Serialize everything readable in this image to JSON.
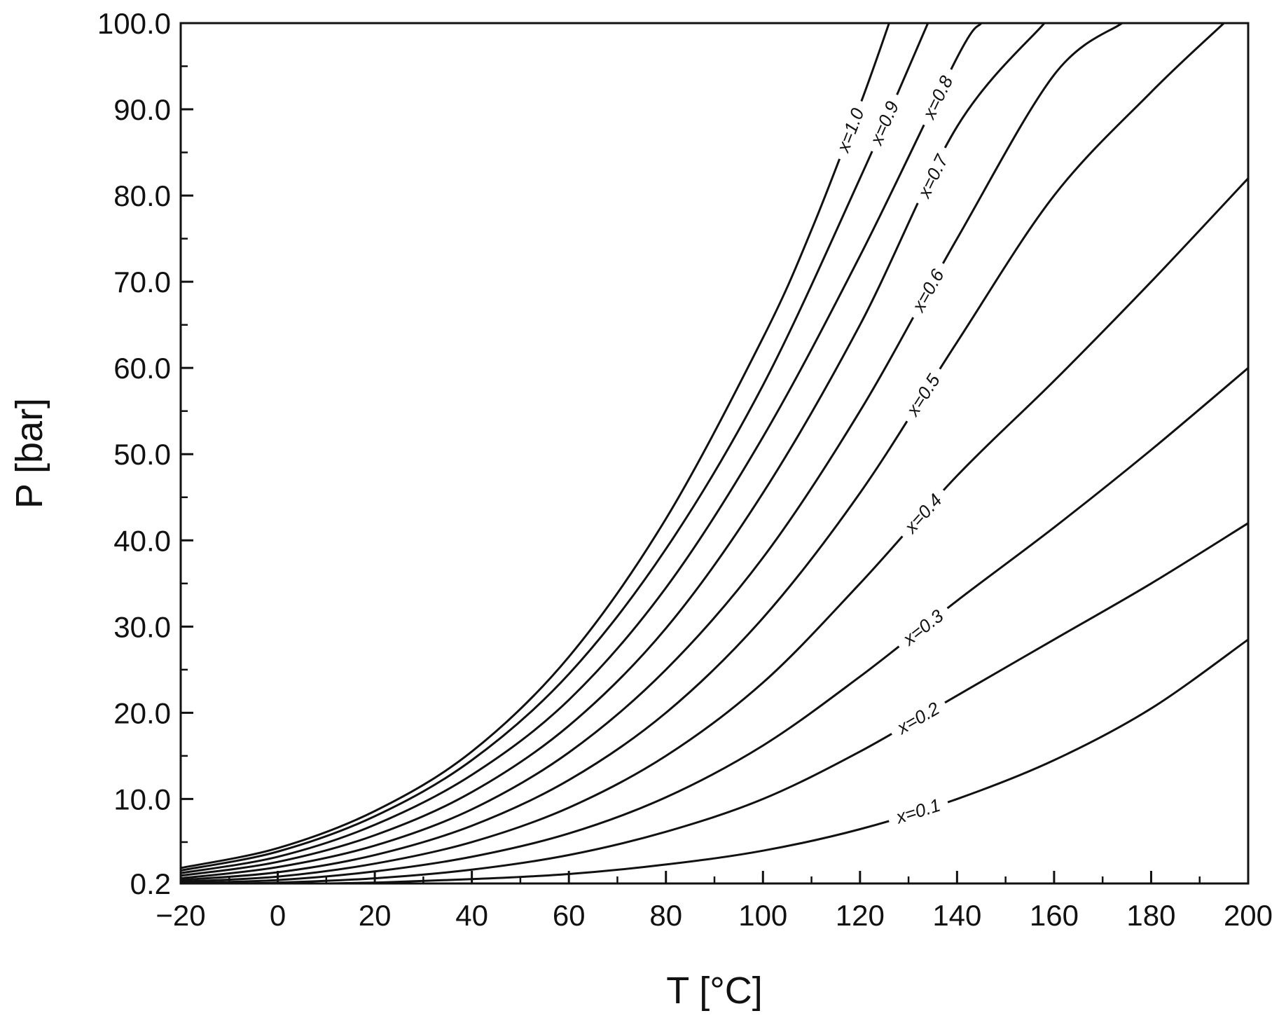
{
  "chart_data": {
    "type": "line",
    "xlabel": "T [°C]",
    "ylabel": "P [bar]",
    "xlim": [
      -20,
      200
    ],
    "ylim": [
      0.2,
      100
    ],
    "x_ticks": [
      -20,
      0,
      20,
      40,
      60,
      80,
      100,
      120,
      140,
      160,
      180,
      200
    ],
    "x_tick_labels": [
      "−20",
      "0",
      "20",
      "40",
      "60",
      "80",
      "100",
      "120",
      "140",
      "160",
      "180",
      "200"
    ],
    "y_ticks": [
      0.2,
      10,
      20,
      30,
      40,
      50,
      60,
      70,
      80,
      90,
      100
    ],
    "y_tick_labels": [
      "0.2",
      "10.0",
      "20.0",
      "30.0",
      "40.0",
      "50.0",
      "60.0",
      "70.0",
      "80.0",
      "90.0",
      "100.0"
    ],
    "grid": false,
    "legend": "none",
    "line_color": "#111111",
    "series": [
      {
        "name": "x=1.0",
        "label_at_x": 118,
        "points": [
          [
            -20,
            2.0
          ],
          [
            0,
            4.3
          ],
          [
            20,
            8.6
          ],
          [
            40,
            15.5
          ],
          [
            60,
            26.5
          ],
          [
            80,
            42.5
          ],
          [
            100,
            63.5
          ],
          [
            110,
            76.0
          ],
          [
            120,
            90.5
          ],
          [
            126,
            100
          ]
        ]
      },
      {
        "name": "x=0.9",
        "label_at_x": 125,
        "points": [
          [
            -20,
            1.7
          ],
          [
            0,
            3.9
          ],
          [
            20,
            8.0
          ],
          [
            40,
            14.5
          ],
          [
            60,
            24.5
          ],
          [
            80,
            39.0
          ],
          [
            100,
            58.0
          ],
          [
            120,
            82.0
          ],
          [
            134,
            100
          ]
        ]
      },
      {
        "name": "x=0.8",
        "label_at_x": 136,
        "points": [
          [
            -20,
            1.4
          ],
          [
            0,
            3.3
          ],
          [
            20,
            7.0
          ],
          [
            40,
            12.8
          ],
          [
            60,
            21.5
          ],
          [
            80,
            34.5
          ],
          [
            100,
            52.0
          ],
          [
            120,
            73.0
          ],
          [
            140,
            96.0
          ],
          [
            145,
            100
          ]
        ]
      },
      {
        "name": "x=0.7",
        "label_at_x": 135,
        "points": [
          [
            -20,
            1.1
          ],
          [
            0,
            2.7
          ],
          [
            20,
            5.8
          ],
          [
            40,
            10.8
          ],
          [
            60,
            18.5
          ],
          [
            80,
            29.8
          ],
          [
            100,
            45.5
          ],
          [
            120,
            65.0
          ],
          [
            140,
            88.0
          ],
          [
            158,
            100
          ]
        ]
      },
      {
        "name": "x=0.6",
        "label_at_x": 134,
        "points": [
          [
            -20,
            0.8
          ],
          [
            0,
            2.1
          ],
          [
            20,
            4.6
          ],
          [
            40,
            8.8
          ],
          [
            60,
            15.4
          ],
          [
            80,
            25.0
          ],
          [
            100,
            38.0
          ],
          [
            120,
            55.0
          ],
          [
            140,
            75.0
          ],
          [
            160,
            94.0
          ],
          [
            174,
            100
          ]
        ]
      },
      {
        "name": "x=0.5",
        "label_at_x": 133,
        "points": [
          [
            -20,
            0.6
          ],
          [
            0,
            1.5
          ],
          [
            20,
            3.5
          ],
          [
            40,
            6.9
          ],
          [
            60,
            12.2
          ],
          [
            80,
            20.0
          ],
          [
            100,
            31.0
          ],
          [
            120,
            45.5
          ],
          [
            140,
            63.0
          ],
          [
            160,
            80.0
          ],
          [
            180,
            92.0
          ],
          [
            195,
            100
          ]
        ]
      },
      {
        "name": "x=0.4",
        "label_at_x": 133,
        "points": [
          [
            -20,
            0.4
          ],
          [
            0,
            1.0
          ],
          [
            20,
            2.5
          ],
          [
            40,
            5.0
          ],
          [
            60,
            9.0
          ],
          [
            80,
            15.0
          ],
          [
            100,
            23.5
          ],
          [
            120,
            35.0
          ],
          [
            140,
            47.5
          ],
          [
            160,
            58.5
          ],
          [
            180,
            70.0
          ],
          [
            200,
            82.0
          ]
        ]
      },
      {
        "name": "x=0.3",
        "label_at_x": 133,
        "points": [
          [
            -20,
            0.25
          ],
          [
            0,
            0.6
          ],
          [
            20,
            1.6
          ],
          [
            40,
            3.3
          ],
          [
            60,
            6.0
          ],
          [
            80,
            10.2
          ],
          [
            100,
            16.2
          ],
          [
            120,
            24.2
          ],
          [
            140,
            33.0
          ],
          [
            160,
            41.5
          ],
          [
            180,
            50.5
          ],
          [
            200,
            60.0
          ]
        ]
      },
      {
        "name": "x=0.2",
        "label_at_x": 132,
        "points": [
          [
            -20,
            0.1
          ],
          [
            0,
            0.3
          ],
          [
            20,
            0.8
          ],
          [
            40,
            1.8
          ],
          [
            60,
            3.5
          ],
          [
            80,
            6.2
          ],
          [
            100,
            10.0
          ],
          [
            120,
            15.5
          ],
          [
            140,
            22.0
          ],
          [
            160,
            28.5
          ],
          [
            180,
            35.0
          ],
          [
            200,
            42.0
          ]
        ]
      },
      {
        "name": "x=0.1",
        "label_at_x": 132,
        "points": [
          [
            -20,
            0.0
          ],
          [
            0,
            0.1
          ],
          [
            20,
            0.3
          ],
          [
            40,
            0.7
          ],
          [
            60,
            1.3
          ],
          [
            80,
            2.4
          ],
          [
            100,
            4.0
          ],
          [
            120,
            6.5
          ],
          [
            140,
            10.0
          ],
          [
            160,
            14.5
          ],
          [
            180,
            20.5
          ],
          [
            200,
            28.5
          ]
        ]
      }
    ]
  }
}
